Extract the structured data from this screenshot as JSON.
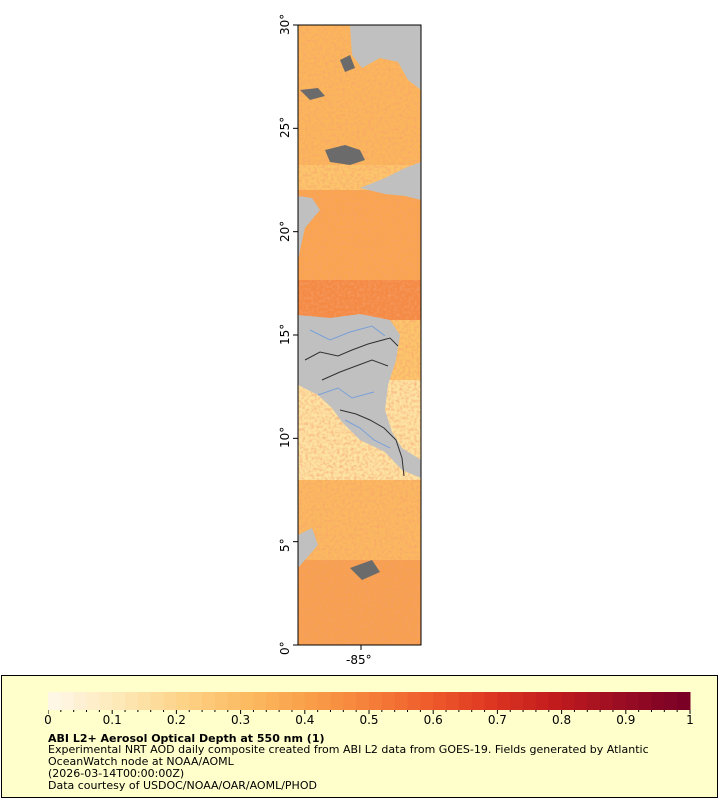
{
  "map": {
    "y_ticks": [
      "0°",
      "5°",
      "10°",
      "15°",
      "20°",
      "25°",
      "30°"
    ],
    "x_tick": "-85°",
    "lat_range": [
      0,
      30
    ],
    "colors": {
      "land": "#c0c0c0",
      "cloud": "#6b6b6b",
      "border": "#303030",
      "river": "#7aa0d8"
    }
  },
  "legend": {
    "ticks": [
      "0",
      "0.1",
      "0.2",
      "0.3",
      "0.4",
      "0.5",
      "0.6",
      "0.7",
      "0.8",
      "0.9",
      "1"
    ],
    "title": "ABI L2+ Aerosol Optical Depth at 550 nm (1)",
    "line1": "Experimental NRT AOD daily composite created from ABI L2 data from GOES-19. Fields generated by Atlantic",
    "line2": "OceanWatch node at NOAA/AOML",
    "line3": "(2026-03-14T00:00:00Z)",
    "line4": "Data courtesy of USDOC/NOAA/OAR/AOML/PHOD",
    "colors": [
      "#fff7e6",
      "#fde9b8",
      "#fdd48a",
      "#fcbc63",
      "#f9a04a",
      "#f6803a",
      "#ee5a2b",
      "#dc3420",
      "#c01a1e",
      "#9a0d22",
      "#7a0026"
    ]
  }
}
